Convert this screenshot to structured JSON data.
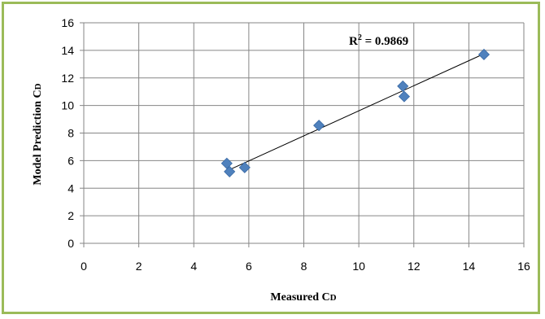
{
  "chart_data": {
    "type": "scatter",
    "title": "",
    "xlabel": "Measured CD",
    "ylabel": "Model Prediction CD",
    "xlim": [
      0,
      16
    ],
    "ylim": [
      0,
      16
    ],
    "x_ticks": [
      0,
      2,
      4,
      6,
      8,
      10,
      12,
      14,
      16
    ],
    "y_ticks": [
      0,
      2,
      4,
      6,
      8,
      10,
      12,
      14,
      16
    ],
    "grid": true,
    "legend": "none",
    "series": [
      {
        "marker": "diamond",
        "color": "#4f81bd",
        "points": [
          {
            "x": 5.2,
            "y": 5.8
          },
          {
            "x": 5.3,
            "y": 5.2
          },
          {
            "x": 5.85,
            "y": 5.5
          },
          {
            "x": 8.55,
            "y": 8.55
          },
          {
            "x": 11.6,
            "y": 11.4
          },
          {
            "x": 11.65,
            "y": 10.65
          },
          {
            "x": 14.55,
            "y": 13.7
          }
        ]
      }
    ],
    "trendline": {
      "type": "linear",
      "x_range": [
        5.2,
        14.55
      ],
      "y_range": [
        5.25,
        13.75
      ],
      "color": "#000000"
    },
    "annotation": {
      "prefix": "R",
      "sup": "2",
      "text": " = 0.9869"
    }
  },
  "colors": {
    "border": "#9bbb59",
    "grid": "#868686",
    "marker": "#4f81bd"
  }
}
